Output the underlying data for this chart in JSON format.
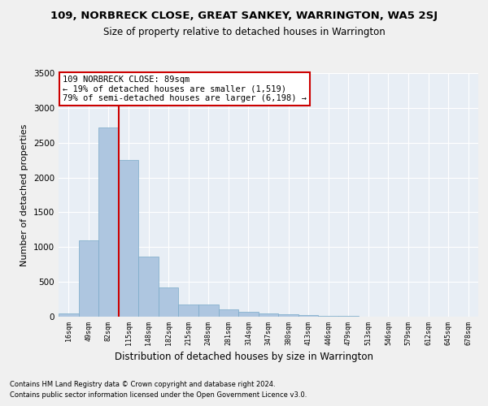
{
  "title1": "109, NORBRECK CLOSE, GREAT SANKEY, WARRINGTON, WA5 2SJ",
  "title2": "Size of property relative to detached houses in Warrington",
  "xlabel": "Distribution of detached houses by size in Warrington",
  "ylabel": "Number of detached properties",
  "footer1": "Contains HM Land Registry data © Crown copyright and database right 2024.",
  "footer2": "Contains public sector information licensed under the Open Government Licence v3.0.",
  "bar_labels": [
    "16sqm",
    "49sqm",
    "82sqm",
    "115sqm",
    "148sqm",
    "182sqm",
    "215sqm",
    "248sqm",
    "281sqm",
    "314sqm",
    "347sqm",
    "380sqm",
    "413sqm",
    "446sqm",
    "479sqm",
    "513sqm",
    "546sqm",
    "579sqm",
    "612sqm",
    "645sqm",
    "678sqm"
  ],
  "bar_values": [
    50,
    1100,
    2720,
    2250,
    860,
    420,
    175,
    175,
    100,
    65,
    50,
    35,
    20,
    15,
    10,
    0,
    0,
    0,
    0,
    0,
    0
  ],
  "bar_color": "#aec6e0",
  "bar_edgecolor": "#7aaac8",
  "bg_color": "#e8eef5",
  "grid_color": "#ffffff",
  "vline_x": 2.5,
  "vline_color": "#cc0000",
  "annotation_line1": "109 NORBRECK CLOSE: 89sqm",
  "annotation_line2": "← 19% of detached houses are smaller (1,519)",
  "annotation_line3": "79% of semi-detached houses are larger (6,198) →",
  "annotation_box_color": "#ffffff",
  "annotation_box_edgecolor": "#cc0000",
  "ylim": [
    0,
    3500
  ],
  "yticks": [
    0,
    500,
    1000,
    1500,
    2000,
    2500,
    3000,
    3500
  ],
  "fig_bg": "#f0f0f0"
}
